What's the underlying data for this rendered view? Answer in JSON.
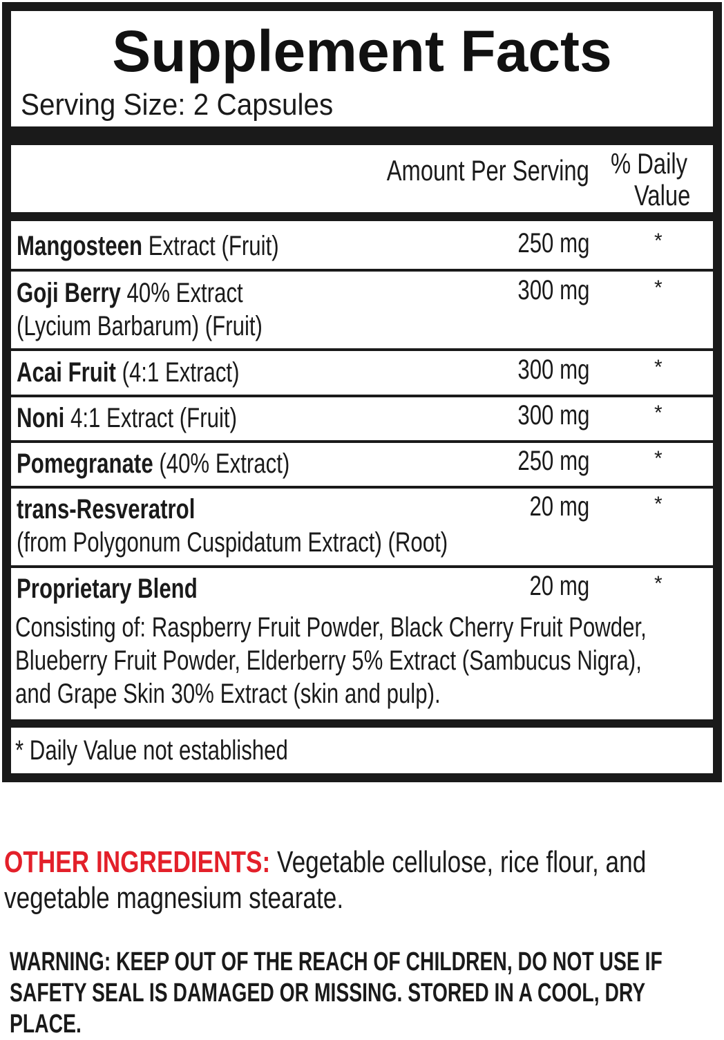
{
  "title": "Supplement Facts",
  "serving_size": "Serving Size: 2 Capsules",
  "header": {
    "amount": "Amount Per Serving",
    "dv_line1": "% Daily",
    "dv_line2": "Value"
  },
  "rows": [
    {
      "bold": "Mangosteen",
      "rest": " Extract (Fruit)",
      "line2": "",
      "amount": "250 mg",
      "dv": "*"
    },
    {
      "bold": "Goji Berry",
      "rest": " 40% Extract",
      "line2": "(Lycium Barbarum) (Fruit)",
      "amount": "300 mg",
      "dv": "*"
    },
    {
      "bold": "Acai Fruit",
      "rest": " (4:1 Extract)",
      "line2": "",
      "amount": "300 mg",
      "dv": "*"
    },
    {
      "bold": "Noni",
      "rest": " 4:1 Extract (Fruit)",
      "line2": "",
      "amount": "300 mg",
      "dv": "*"
    },
    {
      "bold": "Pomegranate",
      "rest": " (40% Extract)",
      "line2": "",
      "amount": "250 mg",
      "dv": "*"
    },
    {
      "bold": "trans-Resveratrol",
      "rest": "",
      "line2": "(from Polygonum Cuspidatum Extract) (Root)",
      "amount": "20 mg",
      "dv": "*"
    },
    {
      "bold": "Proprietary Blend",
      "rest": "",
      "line2": "",
      "amount": "20 mg",
      "dv": "*",
      "blend_lines": [
        "Consisting of: Raspberry Fruit Powder, Black Cherry Fruit Powder,",
        "Blueberry Fruit Powder, Elderberry 5% Extract (Sambucus Nigra),",
        "and Grape Skin 30% Extract (skin and pulp)."
      ]
    }
  ],
  "footnote": "* Daily Value not established",
  "other_ingredients": {
    "label": "OTHER INGREDIENTS:",
    "text_line1": " Vegetable cellulose, rice flour, and",
    "text_line2": "vegetable magnesium stearate.",
    "label_color": "#e3202a"
  },
  "warning": [
    "WARNING: KEEP OUT OF THE REACH OF CHILDREN, DO NOT USE IF",
    "SAFETY SEAL IS DAMAGED OR MISSING. STORED IN A COOL, DRY",
    "PLACE."
  ]
}
